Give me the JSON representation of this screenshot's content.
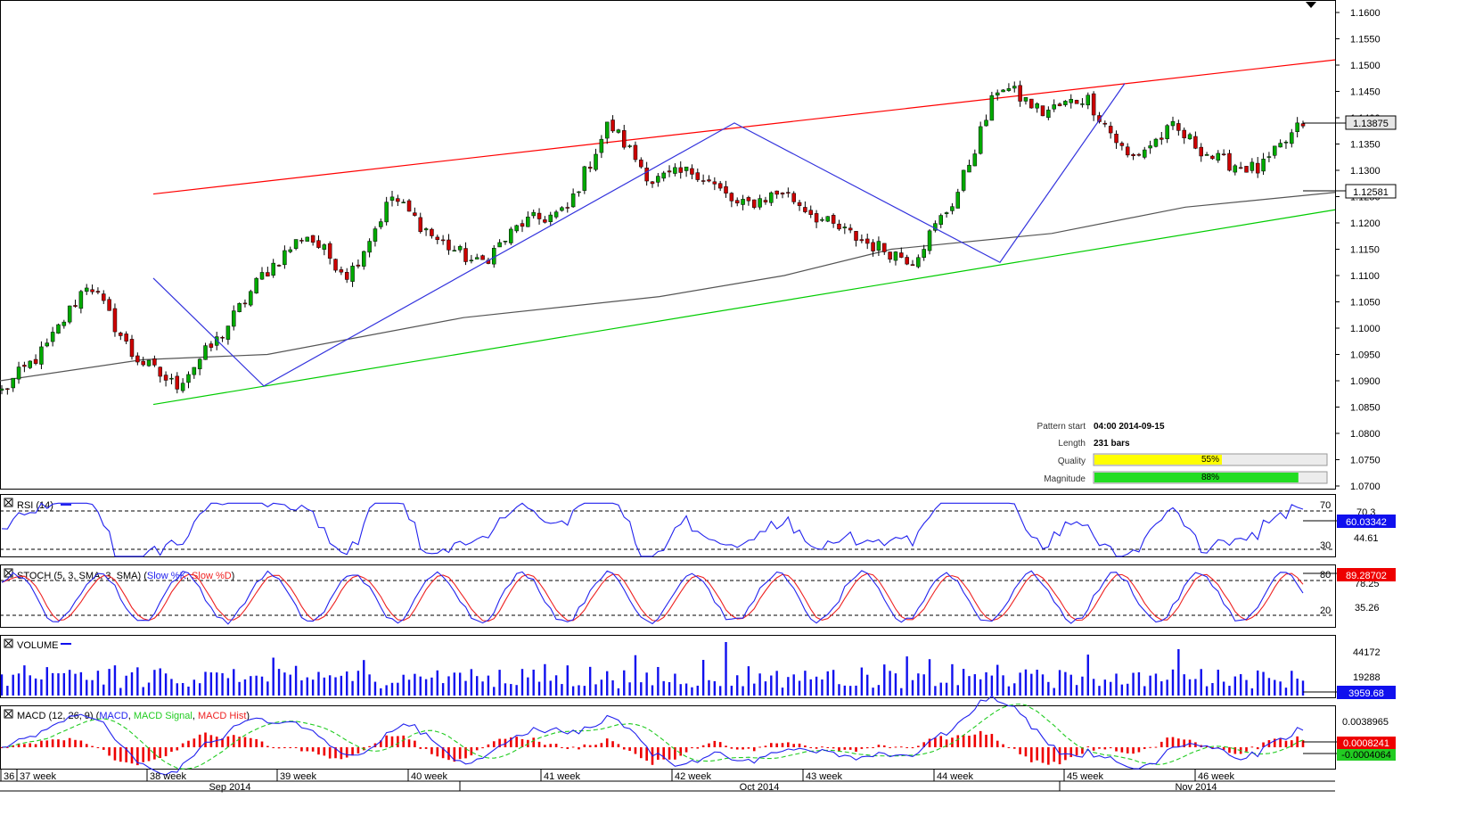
{
  "chart_data": {
    "type": "candlestick",
    "instrument_note": "",
    "current_price_label": "1.13875",
    "ma_price_label": "1.12581",
    "y_ticks": [
      "1.1600",
      "1.1550",
      "1.1500",
      "1.1450",
      "1.1400",
      "1.1350",
      "1.1300",
      "1.1250",
      "1.1200",
      "1.1150",
      "1.1100",
      "1.1050",
      "1.1000",
      "1.0950",
      "1.0900",
      "1.0850",
      "1.0800",
      "1.0750",
      "1.0700"
    ],
    "ylim": [
      1.069,
      1.162
    ],
    "week_labels": [
      "36",
      "37 week",
      "38 week",
      "39 week",
      "40 week",
      "41 week",
      "42 week",
      "43 week",
      "44 week",
      "45 week",
      "46 week"
    ],
    "month_labels": [
      "Sep 2014",
      "Oct 2014",
      "Nov 2014"
    ],
    "channel": {
      "upper": {
        "from": 1.1255,
        "to": 1.151,
        "color": "#ff0000"
      },
      "lower": {
        "from": 1.0855,
        "to": 1.1225,
        "color": "#00cc00"
      }
    },
    "zigzag_prices": [
      1.1095,
      1.089,
      1.139,
      1.1125,
      1.1465
    ],
    "ma_prices": [
      1.09,
      1.094,
      1.095,
      1.102,
      1.106,
      1.11,
      1.115,
      1.118,
      1.123,
      1.1258
    ],
    "candles": {
      "count": 231,
      "keypoints": [
        1.088,
        1.096,
        1.109,
        1.095,
        1.089,
        1.098,
        1.11,
        1.118,
        1.11,
        1.125,
        1.117,
        1.112,
        1.12,
        1.122,
        1.139,
        1.128,
        1.13,
        1.123,
        1.126,
        1.12,
        1.116,
        1.113,
        1.125,
        1.1465,
        1.141,
        1.144,
        1.132,
        1.138,
        1.132,
        1.13,
        1.139
      ]
    },
    "pattern_info": {
      "pattern_start_label": "Pattern start",
      "pattern_start_value": "04:00 2014-09-15",
      "length_label": "Length",
      "length_value": "231 bars",
      "quality_label": "Quality",
      "quality_value": 55,
      "quality_text": "55%",
      "magnitude_label": "Magnitude",
      "magnitude_value": 88,
      "magnitude_text": "88%"
    },
    "rsi": {
      "title": "RSI (14)",
      "levels": [
        "70",
        "30"
      ],
      "ticks": [
        "70.3",
        "44.61"
      ],
      "value_label": "60.03342"
    },
    "stoch": {
      "title_prefix": "STOCH (5, 3, SMA, 3, SMA) (",
      "k_label": "Slow %K",
      "sep": ", ",
      "d_label": "Slow %D",
      "title_suffix": ")",
      "levels": [
        "80",
        "20"
      ],
      "ticks": [
        "78.25",
        "35.26"
      ],
      "value_label": "89.28702"
    },
    "volume": {
      "title": "VOLUME",
      "ticks": [
        "44172",
        "19288"
      ],
      "value_label": "3959.68"
    },
    "macd": {
      "title_prefix": "MACD (12, 26, 9) (",
      "macd_label": "MACD",
      "signal_label": "MACD Signal",
      "hist_label": "MACD Hist",
      "title_suffix": ")",
      "ticks": [
        "0.0038965"
      ],
      "value_label": "0.0008241",
      "value_label2": "-0.0004064"
    },
    "colors": {
      "bull": "#00aa00",
      "bear": "#cc0000",
      "zigzag": "#3333dd",
      "ma": "#555555",
      "rsi": "#2222ee",
      "stoch_k": "#2222ee",
      "stoch_d": "#ee2222",
      "volume": "#1010ee",
      "macd": "#2222ee",
      "macd_signal": "#22cc22",
      "macd_hist": "#ee0000",
      "quality_bar": "#ffff00",
      "magnitude_bar": "#22dd22"
    }
  }
}
